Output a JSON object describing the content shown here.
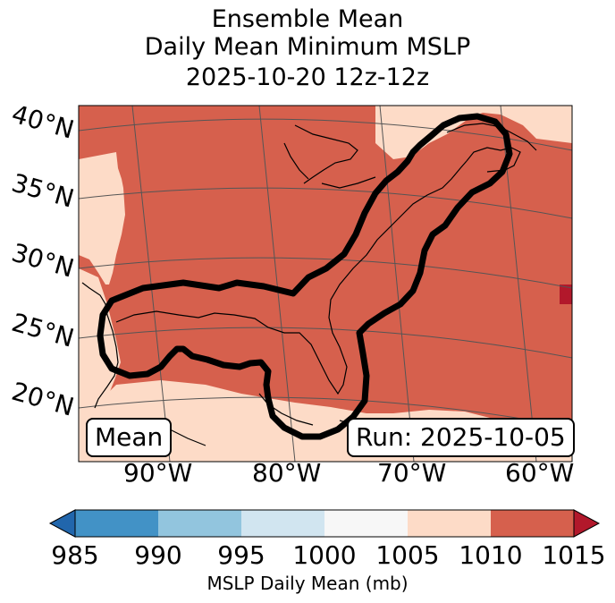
{
  "title": {
    "line1": "Ensemble Mean",
    "line2": "Daily Mean Minimum MSLP",
    "line3": "2025-10-20 12z-12z"
  },
  "map": {
    "lat_labels": [
      "40°N",
      "35°N",
      "30°N",
      "25°N",
      "20°N"
    ],
    "lon_labels": [
      "90°W",
      "80°W",
      "70°W",
      "60°W"
    ],
    "left_box": "Mean",
    "right_box": "Run: 2025-10-05"
  },
  "colorbar": {
    "ticks": [
      "985",
      "990",
      "995",
      "1000",
      "1005",
      "1010",
      "1015"
    ],
    "colors": [
      "#4292c6",
      "#92c5de",
      "#d1e5f0",
      "#f7f7f7",
      "#fddbc7",
      "#d6604d"
    ],
    "under_color": "#2166ac",
    "over_color": "#b2182b",
    "label": "MSLP Daily Mean (mb)"
  },
  "colors": {
    "high": "#d6604d",
    "low": "#fddbc7",
    "spot": "#b2182b",
    "contour": "#000000"
  }
}
